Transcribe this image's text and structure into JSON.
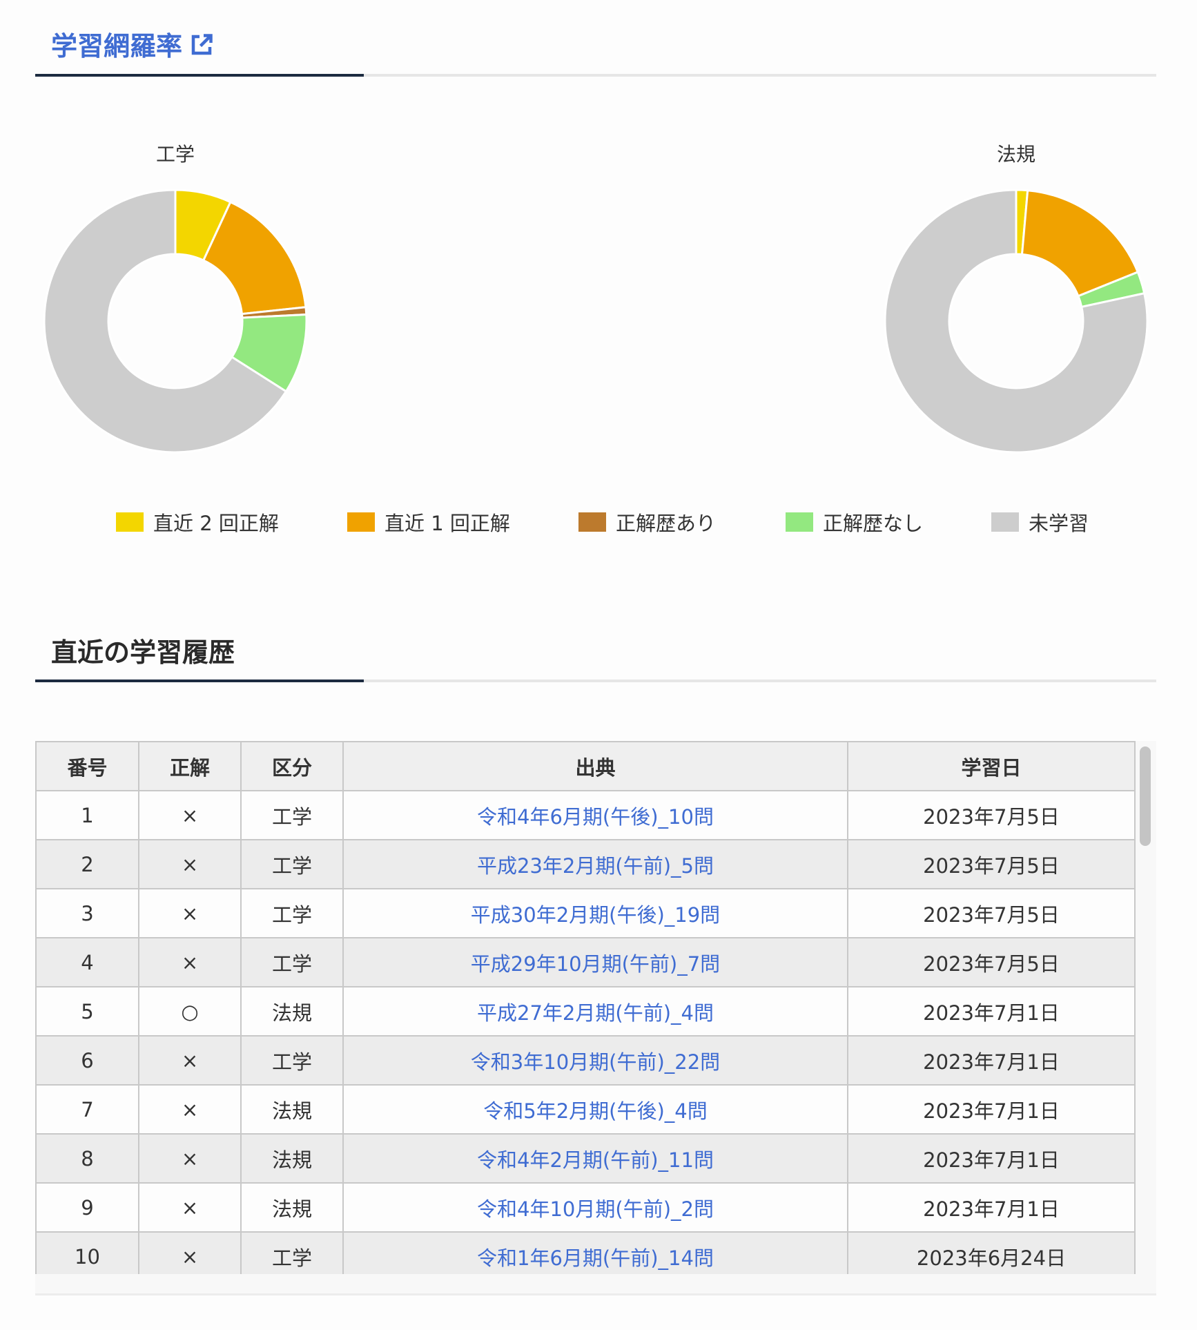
{
  "coverage": {
    "title": "学習網羅率",
    "link_icon": "external-link-icon"
  },
  "chart_data": [
    {
      "type": "pie",
      "variant": "donut",
      "title": "工学",
      "categories": [
        "直近２回正解",
        "直近１回正解",
        "正解歴あり",
        "正解歴なし",
        "未学習"
      ],
      "values": [
        6.9,
        16.4,
        0.9,
        9.8,
        66.0
      ],
      "unit": "%",
      "colors": [
        "#f3d600",
        "#f0a200",
        "#bc7a2d",
        "#93e880",
        "#cdcdcd"
      ]
    },
    {
      "type": "pie",
      "variant": "donut",
      "title": "法規",
      "categories": [
        "直近２回正解",
        "直近１回正解",
        "正解歴あり",
        "正解歴なし",
        "未学習"
      ],
      "values": [
        1.4,
        17.5,
        0,
        2.7,
        78.4
      ],
      "unit": "%",
      "colors": [
        "#f3d600",
        "#f0a200",
        "#bc7a2d",
        "#93e880",
        "#cdcdcd"
      ]
    }
  ],
  "legend": [
    {
      "label": "直近 2 回正解",
      "color": "#f3d600"
    },
    {
      "label": "直近 1 回正解",
      "color": "#f0a200"
    },
    {
      "label": "正解歴あり",
      "color": "#bc7a2d"
    },
    {
      "label": "正解歴なし",
      "color": "#93e880"
    },
    {
      "label": "未学習",
      "color": "#cdcdcd"
    }
  ],
  "history": {
    "title": "直近の学習履歴",
    "columns": [
      "番号",
      "正解",
      "区分",
      "出典",
      "学習日"
    ],
    "rows": [
      [
        "1",
        "×",
        "工学",
        "令和4年6月期(午後)_10問",
        "2023年7月5日"
      ],
      [
        "2",
        "×",
        "工学",
        "平成23年2月期(午前)_5問",
        "2023年7月5日"
      ],
      [
        "3",
        "×",
        "工学",
        "平成30年2月期(午後)_19問",
        "2023年7月5日"
      ],
      [
        "4",
        "×",
        "工学",
        "平成29年10月期(午前)_7問",
        "2023年7月5日"
      ],
      [
        "5",
        "○",
        "法規",
        "平成27年2月期(午前)_4問",
        "2023年7月1日"
      ],
      [
        "6",
        "×",
        "工学",
        "令和3年10月期(午前)_22問",
        "2023年7月1日"
      ],
      [
        "7",
        "×",
        "法規",
        "令和5年2月期(午後)_4問",
        "2023年7月1日"
      ],
      [
        "8",
        "×",
        "法規",
        "令和4年2月期(午前)_11問",
        "2023年7月1日"
      ],
      [
        "9",
        "×",
        "法規",
        "令和4年10月期(午前)_2問",
        "2023年7月1日"
      ],
      [
        "10",
        "×",
        "工学",
        "令和1年6月期(午前)_14問",
        "2023年6月24日"
      ]
    ]
  }
}
